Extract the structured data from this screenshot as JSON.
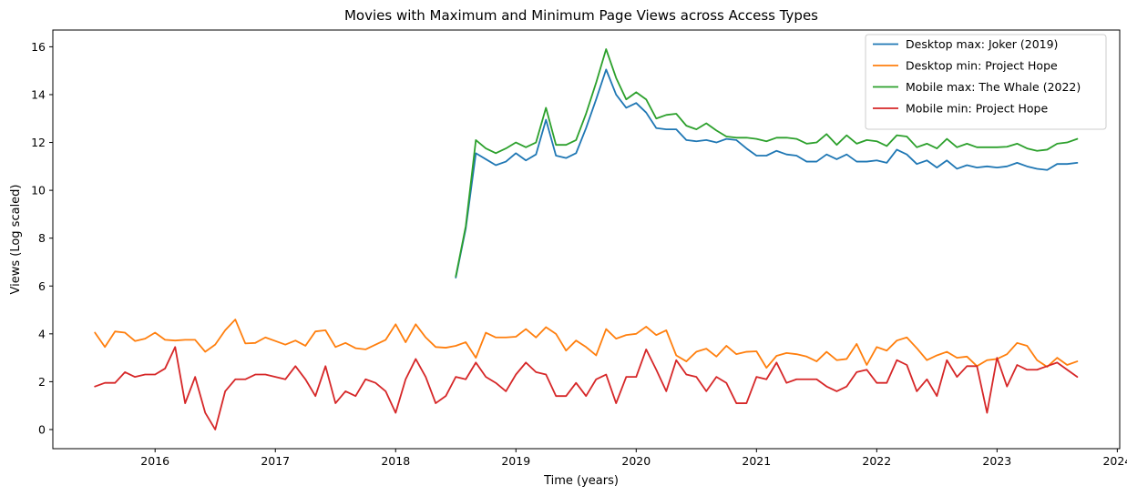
{
  "chart_data": {
    "type": "line",
    "title": "Movies with Maximum and Minimum Page Views across Access Types",
    "xlabel": "Time (years)",
    "ylabel": "Views (Log scaled)",
    "xlim": [
      2015.15,
      2024.02
    ],
    "ylim": [
      -0.8,
      16.7
    ],
    "xticks": [
      2016,
      2017,
      2018,
      2019,
      2020,
      2021,
      2022,
      2023,
      2024
    ],
    "xtick_labels": [
      "2016",
      "2017",
      "2018",
      "2019",
      "2020",
      "2021",
      "2022",
      "2023",
      "2024"
    ],
    "yticks": [
      0,
      2,
      4,
      6,
      8,
      10,
      12,
      14,
      16
    ],
    "ytick_labels": [
      "0",
      "2",
      "4",
      "6",
      "8",
      "10",
      "12",
      "14",
      "16"
    ],
    "grid": false,
    "legend_position": "top-right",
    "series": [
      {
        "name": "Desktop max: Joker (2019)",
        "color": "#1f77b4",
        "x": [
          2018.5,
          2018.583,
          2018.667,
          2018.75,
          2018.833,
          2018.917,
          2019.0,
          2019.083,
          2019.167,
          2019.25,
          2019.333,
          2019.417,
          2019.5,
          2019.583,
          2019.667,
          2019.75,
          2019.833,
          2019.917,
          2020.0,
          2020.083,
          2020.167,
          2020.25,
          2020.333,
          2020.417,
          2020.5,
          2020.583,
          2020.667,
          2020.75,
          2020.833,
          2020.917,
          2021.0,
          2021.083,
          2021.167,
          2021.25,
          2021.333,
          2021.417,
          2021.5,
          2021.583,
          2021.667,
          2021.75,
          2021.833,
          2021.917,
          2022.0,
          2022.083,
          2022.167,
          2022.25,
          2022.333,
          2022.417,
          2022.5,
          2022.583,
          2022.667,
          2022.75,
          2022.833,
          2022.917,
          2023.0,
          2023.083,
          2023.167,
          2023.25,
          2023.333,
          2023.417,
          2023.5,
          2023.583,
          2023.667
        ],
        "y": [
          6.35,
          8.4,
          11.55,
          11.3,
          11.05,
          11.2,
          11.55,
          11.25,
          11.5,
          12.95,
          11.45,
          11.35,
          11.55,
          12.6,
          13.8,
          15.05,
          14.0,
          13.45,
          13.65,
          13.25,
          12.6,
          12.55,
          12.55,
          12.1,
          12.05,
          12.1,
          12.0,
          12.15,
          12.1,
          11.75,
          11.45,
          11.45,
          11.65,
          11.5,
          11.45,
          11.2,
          11.2,
          11.5,
          11.3,
          11.5,
          11.2,
          11.2,
          11.25,
          11.15,
          11.7,
          11.5,
          11.1,
          11.25,
          10.95,
          11.25,
          10.9,
          11.05,
          10.95,
          11.0,
          10.95,
          11.0,
          11.15,
          11.0,
          10.9,
          10.85,
          11.1,
          11.1,
          11.15
        ]
      },
      {
        "name": "Desktop min: Project Hope",
        "color": "#ff7f0e",
        "x": [
          2015.5,
          2015.583,
          2015.667,
          2015.75,
          2015.833,
          2015.917,
          2016.0,
          2016.083,
          2016.167,
          2016.25,
          2016.333,
          2016.417,
          2016.5,
          2016.583,
          2016.667,
          2016.75,
          2016.833,
          2016.917,
          2017.0,
          2017.083,
          2017.167,
          2017.25,
          2017.333,
          2017.417,
          2017.5,
          2017.583,
          2017.667,
          2017.75,
          2017.833,
          2017.917,
          2018.0,
          2018.083,
          2018.167,
          2018.25,
          2018.333,
          2018.417,
          2018.5,
          2018.583,
          2018.667,
          2018.75,
          2018.833,
          2018.917,
          2019.0,
          2019.083,
          2019.167,
          2019.25,
          2019.333,
          2019.417,
          2019.5,
          2019.583,
          2019.667,
          2019.75,
          2019.833,
          2019.917,
          2020.0,
          2020.083,
          2020.167,
          2020.25,
          2020.333,
          2020.417,
          2020.5,
          2020.583,
          2020.667,
          2020.75,
          2020.833,
          2020.917,
          2021.0,
          2021.083,
          2021.167,
          2021.25,
          2021.333,
          2021.417,
          2021.5,
          2021.583,
          2021.667,
          2021.75,
          2021.833,
          2021.917,
          2022.0,
          2022.083,
          2022.167,
          2022.25,
          2022.333,
          2022.417,
          2022.5,
          2022.583,
          2022.667,
          2022.75,
          2022.833,
          2022.917,
          2023.0,
          2023.083,
          2023.167,
          2023.25,
          2023.333,
          2023.417,
          2023.5,
          2023.583,
          2023.667
        ],
        "y": [
          4.05,
          3.45,
          4.1,
          4.05,
          3.7,
          3.8,
          4.05,
          3.75,
          3.72,
          3.75,
          3.75,
          3.25,
          3.55,
          4.15,
          4.6,
          3.6,
          3.62,
          3.85,
          3.7,
          3.55,
          3.72,
          3.5,
          4.1,
          4.15,
          3.45,
          3.62,
          3.4,
          3.35,
          3.55,
          3.75,
          4.4,
          3.65,
          4.4,
          3.85,
          3.45,
          3.42,
          3.5,
          3.65,
          3.0,
          4.05,
          3.85,
          3.85,
          3.88,
          4.2,
          3.85,
          4.28,
          4.0,
          3.3,
          3.72,
          3.45,
          3.1,
          4.2,
          3.8,
          3.95,
          4.0,
          4.3,
          3.95,
          4.15,
          3.1,
          2.85,
          3.25,
          3.38,
          3.05,
          3.5,
          3.15,
          3.25,
          3.27,
          2.58,
          3.08,
          3.2,
          3.15,
          3.05,
          2.85,
          3.25,
          2.9,
          2.95,
          3.58,
          2.7,
          3.45,
          3.3,
          3.72,
          3.85,
          3.4,
          2.9,
          3.1,
          3.25,
          3.0,
          3.05,
          2.65,
          2.9,
          2.95,
          3.15,
          3.62,
          3.5,
          2.9,
          2.62,
          3.0,
          2.7,
          2.85
        ]
      },
      {
        "name": "Mobile max: The Whale (2022)",
        "color": "#2ca02c",
        "x": [
          2018.5,
          2018.583,
          2018.667,
          2018.75,
          2018.833,
          2018.917,
          2019.0,
          2019.083,
          2019.167,
          2019.25,
          2019.333,
          2019.417,
          2019.5,
          2019.583,
          2019.667,
          2019.75,
          2019.833,
          2019.917,
          2020.0,
          2020.083,
          2020.167,
          2020.25,
          2020.333,
          2020.417,
          2020.5,
          2020.583,
          2020.667,
          2020.75,
          2020.833,
          2020.917,
          2021.0,
          2021.083,
          2021.167,
          2021.25,
          2021.333,
          2021.417,
          2021.5,
          2021.583,
          2021.667,
          2021.75,
          2021.833,
          2021.917,
          2022.0,
          2022.083,
          2022.167,
          2022.25,
          2022.333,
          2022.417,
          2022.5,
          2022.583,
          2022.667,
          2022.75,
          2022.833,
          2022.917,
          2023.0,
          2023.083,
          2023.167,
          2023.25,
          2023.333,
          2023.417,
          2023.5,
          2023.583,
          2023.667
        ],
        "y": [
          6.4,
          8.5,
          12.1,
          11.75,
          11.55,
          11.75,
          12.0,
          11.8,
          12.0,
          13.45,
          11.9,
          11.9,
          12.1,
          13.2,
          14.5,
          15.9,
          14.7,
          13.8,
          14.1,
          13.8,
          13.0,
          13.15,
          13.2,
          12.7,
          12.55,
          12.8,
          12.5,
          12.25,
          12.2,
          12.2,
          12.15,
          12.05,
          12.2,
          12.2,
          12.15,
          11.95,
          12.0,
          12.35,
          11.9,
          12.3,
          11.95,
          12.1,
          12.05,
          11.85,
          12.3,
          12.25,
          11.8,
          11.95,
          11.75,
          12.15,
          11.8,
          11.95,
          11.8,
          11.8,
          11.8,
          11.82,
          11.95,
          11.75,
          11.65,
          11.7,
          11.95,
          12.0,
          12.15
        ]
      },
      {
        "name": "Mobile min: Project Hope",
        "color": "#d62728",
        "x": [
          2015.5,
          2015.583,
          2015.667,
          2015.75,
          2015.833,
          2015.917,
          2016.0,
          2016.083,
          2016.167,
          2016.25,
          2016.333,
          2016.417,
          2016.5,
          2016.583,
          2016.667,
          2016.75,
          2016.833,
          2016.917,
          2017.0,
          2017.083,
          2017.167,
          2017.25,
          2017.333,
          2017.417,
          2017.5,
          2017.583,
          2017.667,
          2017.75,
          2017.833,
          2017.917,
          2018.0,
          2018.083,
          2018.167,
          2018.25,
          2018.333,
          2018.417,
          2018.5,
          2018.583,
          2018.667,
          2018.75,
          2018.833,
          2018.917,
          2019.0,
          2019.083,
          2019.167,
          2019.25,
          2019.333,
          2019.417,
          2019.5,
          2019.583,
          2019.667,
          2019.75,
          2019.833,
          2019.917,
          2020.0,
          2020.083,
          2020.167,
          2020.25,
          2020.333,
          2020.417,
          2020.5,
          2020.583,
          2020.667,
          2020.75,
          2020.833,
          2020.917,
          2021.0,
          2021.083,
          2021.167,
          2021.25,
          2021.333,
          2021.417,
          2021.5,
          2021.583,
          2021.667,
          2021.75,
          2021.833,
          2021.917,
          2022.0,
          2022.083,
          2022.167,
          2022.25,
          2022.333,
          2022.417,
          2022.5,
          2022.583,
          2022.667,
          2022.75,
          2022.833,
          2022.917,
          2023.0,
          2023.083,
          2023.167,
          2023.25,
          2023.333,
          2023.417,
          2023.5,
          2023.583,
          2023.667
        ],
        "y": [
          1.8,
          1.95,
          1.95,
          2.4,
          2.2,
          2.3,
          2.3,
          2.55,
          3.45,
          1.1,
          2.2,
          0.7,
          0.0,
          1.6,
          2.1,
          2.1,
          2.3,
          2.3,
          2.2,
          2.1,
          2.65,
          2.1,
          1.4,
          2.65,
          1.1,
          1.6,
          1.4,
          2.1,
          1.95,
          1.6,
          0.7,
          2.1,
          2.95,
          2.2,
          1.1,
          1.4,
          2.2,
          2.1,
          2.8,
          2.2,
          1.95,
          1.6,
          2.3,
          2.8,
          2.4,
          2.3,
          1.4,
          1.4,
          1.95,
          1.4,
          2.1,
          2.3,
          1.1,
          2.2,
          2.2,
          3.35,
          2.5,
          1.6,
          2.9,
          2.3,
          2.2,
          1.6,
          2.2,
          1.95,
          1.1,
          1.1,
          2.2,
          2.1,
          2.8,
          1.95,
          2.1,
          2.1,
          2.1,
          1.8,
          1.6,
          1.8,
          2.4,
          2.5,
          1.95,
          1.95,
          2.9,
          2.7,
          1.6,
          2.1,
          1.4,
          2.9,
          2.2,
          2.65,
          2.65,
          0.7,
          3.0,
          1.8,
          2.7,
          2.5,
          2.5,
          2.65,
          2.8,
          2.5,
          2.2
        ]
      }
    ]
  }
}
